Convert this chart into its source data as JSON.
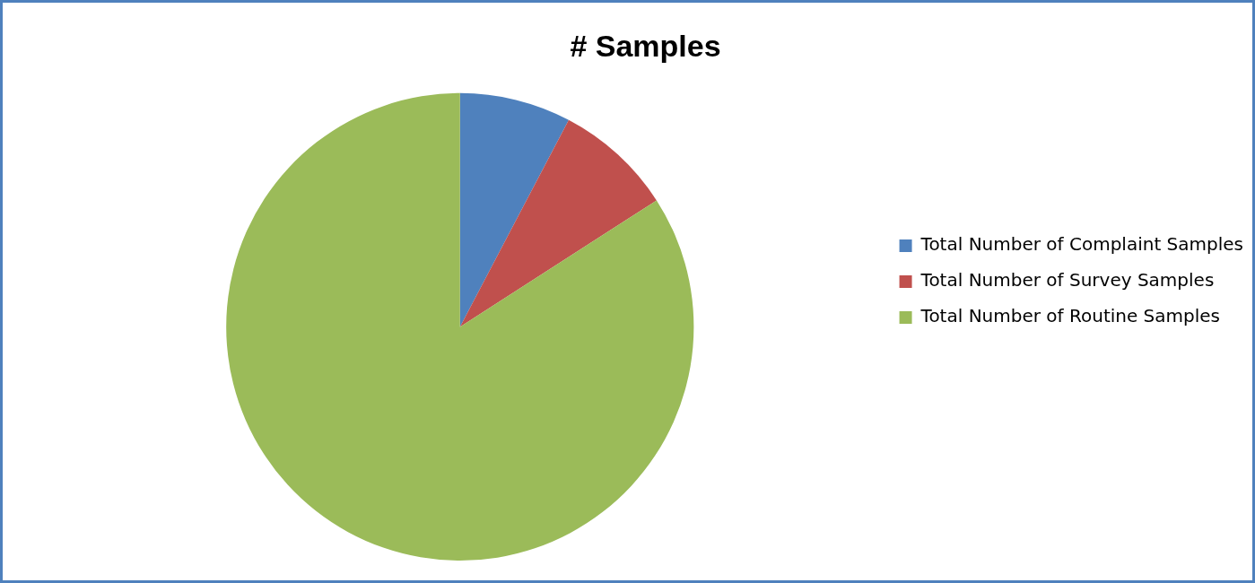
{
  "chart_data": {
    "type": "pie",
    "title": "# Samples",
    "categories": [
      "Total Number of Complaint Samples",
      "Total Number of Survey Samples",
      "Total Number of Routine Samples"
    ],
    "values": [
      7.7,
      8.2,
      84.1
    ],
    "colors": [
      "#4f81bd",
      "#c0504d",
      "#9bbb59"
    ],
    "legend": "right"
  }
}
